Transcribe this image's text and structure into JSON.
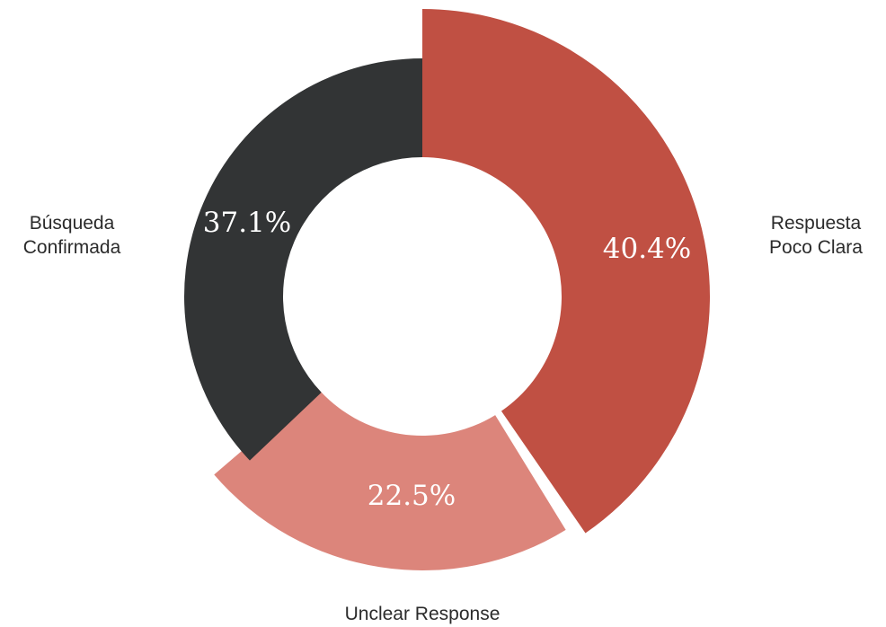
{
  "chart_data": {
    "type": "pie",
    "variant": "donut",
    "categories": [
      "Respuesta Poco Clara",
      "Unclear Response",
      "Búsqueda Confirmada"
    ],
    "values": [
      40.4,
      22.5,
      37.1
    ],
    "value_labels": [
      "40.4%",
      "22.5%",
      "37.1%"
    ],
    "category_label_lines": [
      [
        "Respuesta",
        "Poco Clara"
      ],
      [
        "Unclear Response"
      ],
      [
        "Búsqueda",
        "Confirmada"
      ]
    ],
    "colors": [
      "#c05043",
      "#dc857b",
      "#323435"
    ],
    "legend": "none"
  }
}
